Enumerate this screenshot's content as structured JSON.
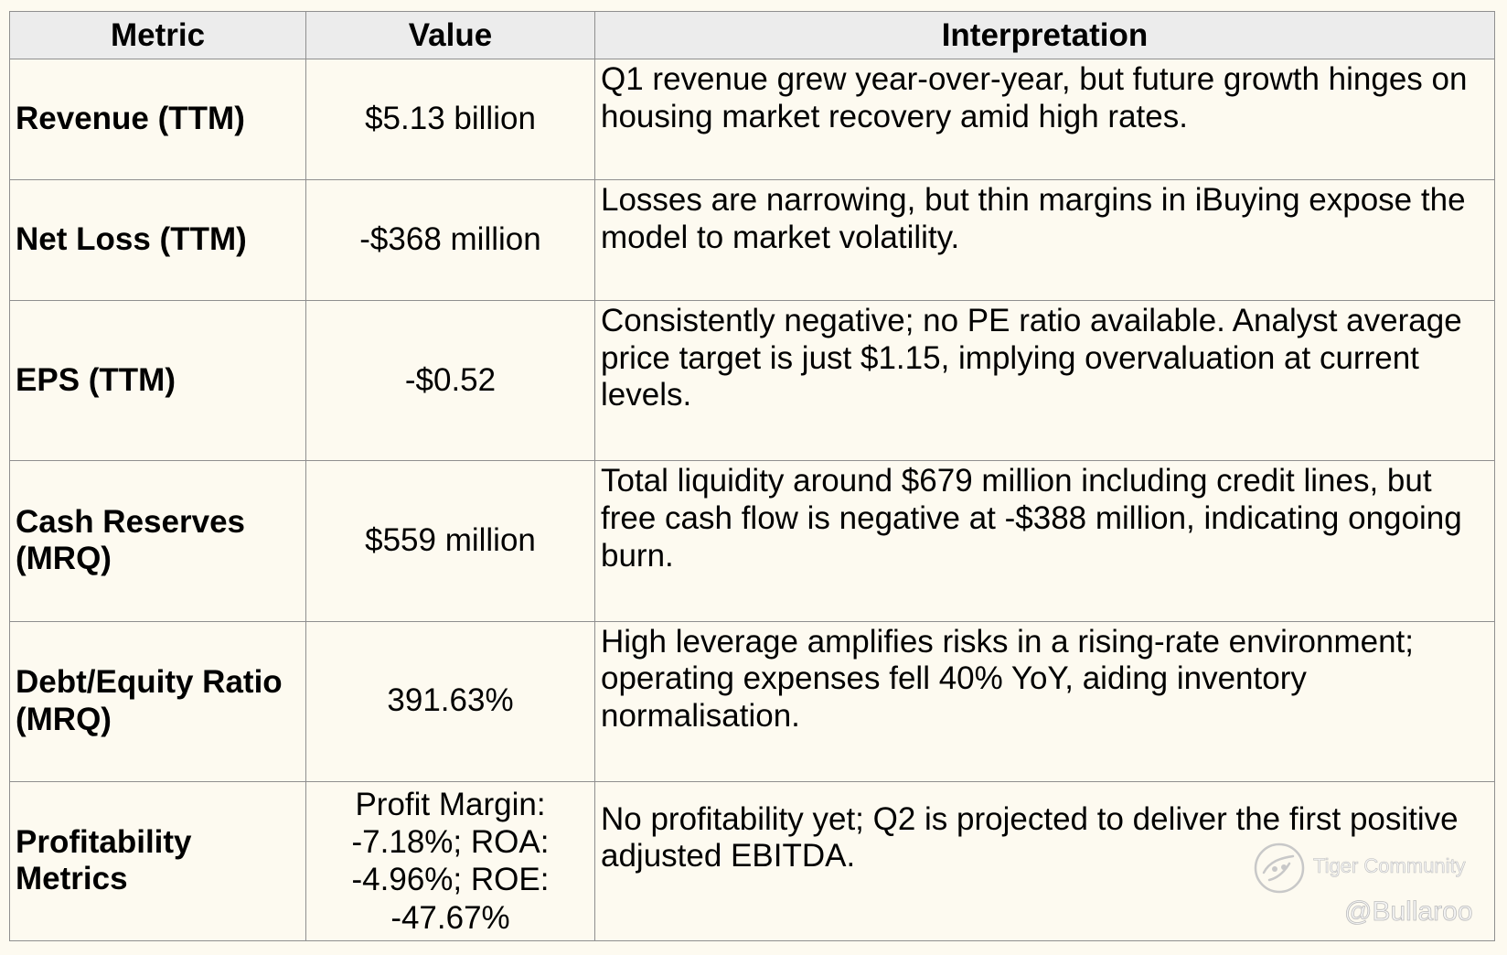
{
  "table": {
    "headers": {
      "metric": "Metric",
      "value": "Value",
      "interpretation": "Interpretation"
    },
    "rows": [
      {
        "metric": "Revenue (TTM)",
        "value": "$5.13 billion",
        "interpretation": "Q1 revenue grew year-over-year, but future growth hinges on housing market recovery amid high rates."
      },
      {
        "metric": "Net Loss (TTM)",
        "value": "-$368 million",
        "interpretation": "Losses are narrowing, but thin margins in iBuying expose the model to market volatility."
      },
      {
        "metric": "EPS (TTM)",
        "value": "-$0.52",
        "interpretation": "Consistently negative; no PE ratio available. Analyst average price target is just $1.15, implying overvaluation at current levels."
      },
      {
        "metric": "Cash Reserves (MRQ)",
        "value": "$559 million",
        "interpretation": "Total liquidity around $679 million including credit lines, but free cash flow is negative at -$388 million, indicating ongoing burn."
      },
      {
        "metric": "Debt/Equity Ratio (MRQ)",
        "value": "391.63%",
        "interpretation": "High leverage amplifies risks in a rising-rate environment; operating expenses fell 40% YoY, aiding inventory normalisation."
      },
      {
        "metric": "Profitability Metrics",
        "value": "Profit Margin: -7.18%; ROA: -4.96%; ROE: -47.67%",
        "interpretation": "No profitability yet; Q2 is projected to deliver the first positive adjusted EBITDA."
      }
    ]
  },
  "watermark": {
    "brand": "Tiger Community",
    "user": "@Bullaroo",
    "icon": "tiger-community-logo-icon"
  }
}
